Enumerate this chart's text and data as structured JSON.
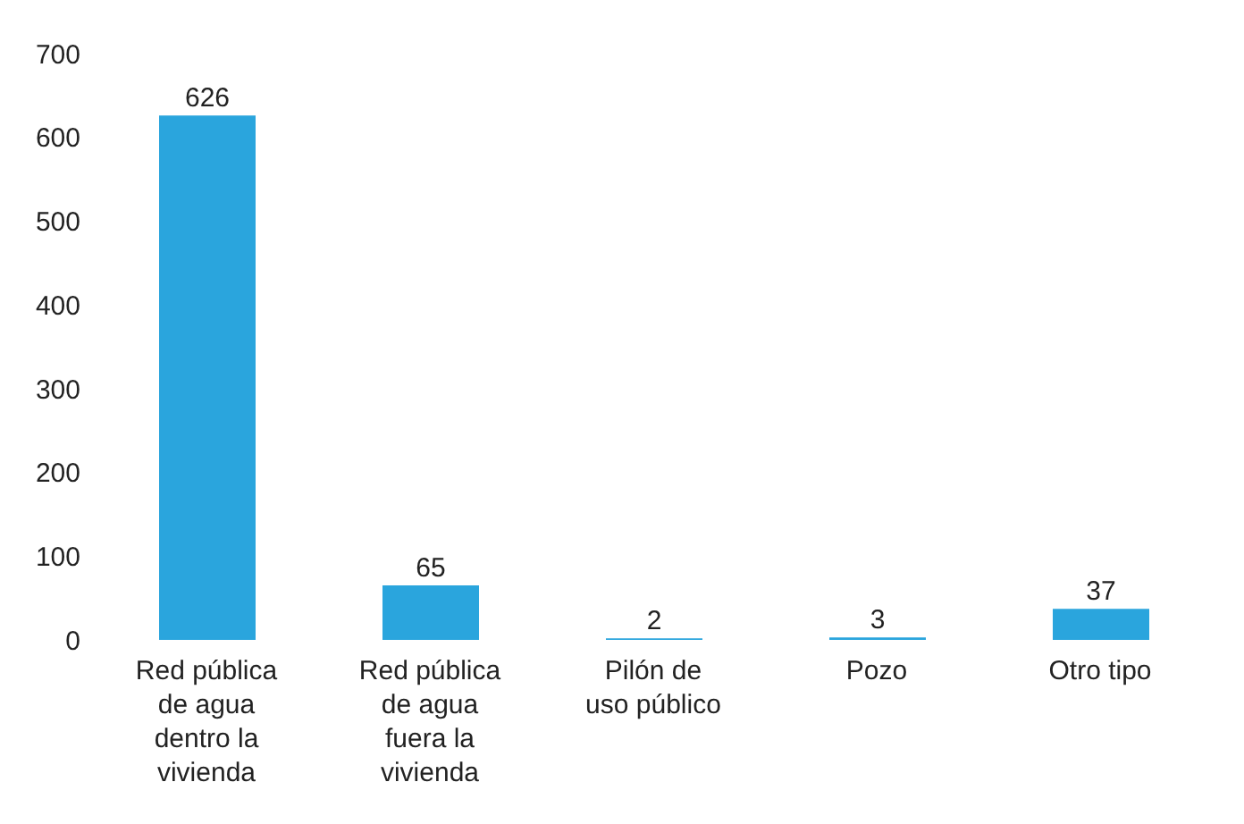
{
  "chart_data": {
    "type": "bar",
    "categories": [
      "Red pública de agua dentro la vivienda",
      "Red pública de agua fuera la vivienda",
      "Pilón de uso público",
      "Pozo",
      "Otro tipo"
    ],
    "values": [
      626,
      65,
      2,
      3,
      37
    ],
    "color": "#2aa5dd",
    "ylim": [
      0,
      700
    ],
    "yticks": [
      0,
      100,
      200,
      300,
      400,
      500,
      600,
      700
    ],
    "data_labels": true,
    "grid": false,
    "legend": false
  }
}
